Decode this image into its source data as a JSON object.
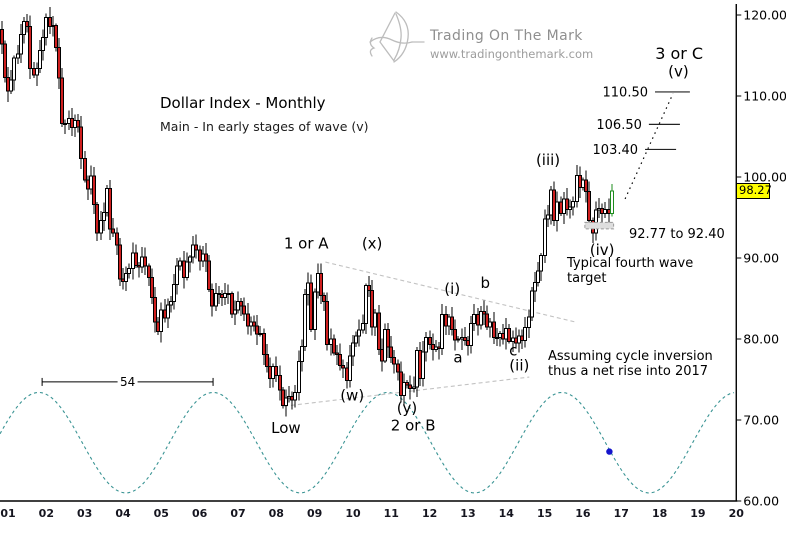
{
  "header": {
    "title": "Dollar Index - Monthly",
    "subtitle": "Main - In early stages of wave (v)"
  },
  "logo": {
    "name": "Trading On The Mark",
    "url": "www.tradingonthemark.com"
  },
  "current_price": {
    "label": "98.27",
    "value": 98.27
  },
  "y_axis": [
    {
      "value": 120,
      "label": "120.00"
    },
    {
      "value": 110,
      "label": "110.00"
    },
    {
      "value": 100,
      "label": "100.00"
    },
    {
      "value": 90,
      "label": "90.00"
    },
    {
      "value": 80,
      "label": "80.00"
    },
    {
      "value": 70,
      "label": "70.00"
    },
    {
      "value": 60,
      "label": "60.00"
    }
  ],
  "x_axis_labels": [
    "01",
    "02",
    "03",
    "04",
    "05",
    "06",
    "07",
    "08",
    "09",
    "10",
    "11",
    "12",
    "13",
    "14",
    "15",
    "16",
    "17",
    "18",
    "19",
    "20"
  ],
  "annotations": {
    "wave_labels": [
      {
        "text": "1 or A",
        "year": 8.78,
        "price": 91.8
      },
      {
        "text": "(x)",
        "year": 10.5,
        "price": 91.8
      },
      {
        "text": "Low",
        "year": 8.25,
        "price": 69.0
      },
      {
        "text": "(w)",
        "year": 9.98,
        "price": 73.0
      },
      {
        "text": "(y)",
        "year": 11.41,
        "price": 71.5
      },
      {
        "text": "2 or B",
        "year": 11.57,
        "price": 69.3
      },
      {
        "text": "(i)",
        "year": 12.59,
        "price": 86.2
      },
      {
        "text": "a",
        "year": 12.74,
        "price": 77.7
      },
      {
        "text": "b",
        "year": 13.45,
        "price": 86.9
      },
      {
        "text": "c",
        "year": 14.18,
        "price": 78.6
      },
      {
        "text": "(ii)",
        "year": 14.34,
        "price": 76.7
      },
      {
        "text": "(iii)",
        "year": 15.09,
        "price": 102.1
      },
      {
        "text": "(iv)",
        "year": 16.5,
        "price": 91.0
      },
      {
        "text": "3 or C",
        "year": 18.51,
        "price": 115.2,
        "big": true
      },
      {
        "text": "(v)",
        "year": 18.49,
        "price": 113.0
      }
    ],
    "targets": [
      {
        "label": "110.50",
        "price": 110.5,
        "year_from": 17.88,
        "year_to": 18.79
      },
      {
        "label": "106.50",
        "price": 106.5,
        "year_from": 17.72,
        "year_to": 18.53
      },
      {
        "label": "103.40",
        "price": 103.4,
        "year_from": 17.62,
        "year_to": 18.43
      }
    ],
    "projection": {
      "from": {
        "year": 17.1,
        "price": 97.3
      },
      "to": {
        "year": 18.35,
        "price": 110.3
      }
    },
    "trendlines": [
      {
        "from": {
          "year": 9.28,
          "price": 89.5
        },
        "to": {
          "year": 15.8,
          "price": 82.1
        }
      },
      {
        "from": {
          "year": 8.2,
          "price": 71.7
        },
        "to": {
          "year": 14.6,
          "price": 75.3
        }
      }
    ],
    "measurement": {
      "label": "54",
      "year_from": 1.89,
      "year_to": 6.35,
      "price": 74.7
    },
    "target_zone": {
      "label": "92.77 to 92.40",
      "year_from": 16.05,
      "year_to": 16.8,
      "price_top": 94.4,
      "price_bottom": 93.6
    },
    "notes": [
      {
        "text": "Typical fourth wave target"
      },
      {
        "text": "Assuming cycle inversion thus a net rise into 2017"
      }
    ]
  },
  "chart_data": {
    "type": "candlestick",
    "title": "Dollar Index - Monthly",
    "ylabel": "",
    "xlabel": "",
    "ylim": [
      60,
      120
    ],
    "x_years_labeled": [
      1,
      20
    ],
    "grid": false,
    "series_start": "2000-11",
    "first_open": 118.2,
    "monthly_closes": [
      116.4,
      112.3,
      110.6,
      112.0,
      114.7,
      115.2,
      117.6,
      119.2,
      118.6,
      113.4,
      112.6,
      113.4,
      115.6,
      117.2,
      119.7,
      118.6,
      118.7,
      116.0,
      112.2,
      106.6,
      106.6,
      107.2,
      106.1,
      107.0,
      106.2,
      102.3,
      99.6,
      98.5,
      100.1,
      96.6,
      93.1,
      94.6,
      95.6,
      98.6,
      93.6,
      93.1,
      91.6,
      87.4,
      87.1,
      88.1,
      88.7,
      90.6,
      89.1,
      88.9,
      90.1,
      89.0,
      87.6,
      85.1,
      82.1,
      80.9,
      83.6,
      82.6,
      84.2,
      84.6,
      86.7,
      89.0,
      89.6,
      87.6,
      89.5,
      90.1,
      91.6,
      91.0,
      89.6,
      90.5,
      89.6,
      86.1,
      84.1,
      85.6,
      85.5,
      85.1,
      85.6,
      85.6,
      83.1,
      83.6,
      84.6,
      84.1,
      83.1,
      81.6,
      82.1,
      81.6,
      80.6,
      80.7,
      78.1,
      76.6,
      75.1,
      76.6,
      75.5,
      73.7,
      71.8,
      72.7,
      72.9,
      72.5,
      73.4,
      77.2,
      79.1,
      85.5,
      86.9,
      81.2,
      85.8,
      88.1,
      85.4,
      84.6,
      79.3,
      80.0,
      78.3,
      78.1,
      76.7,
      76.4,
      74.9,
      77.9,
      79.5,
      80.4,
      81.1,
      81.9,
      86.6,
      86.0,
      81.5,
      83.2,
      78.7,
      77.3,
      81.2,
      79.0,
      77.7,
      76.9,
      75.9,
      73.0,
      74.6,
      74.3,
      73.9,
      74.1,
      78.6,
      75.1,
      78.4,
      80.2,
      79.3,
      78.7,
      79.0,
      78.8,
      83.0,
      81.6,
      82.7,
      81.2,
      79.9,
      80.0,
      80.2,
      79.8,
      79.2,
      81.9,
      83.0,
      81.7,
      83.4,
      83.1,
      81.5,
      82.1,
      80.2,
      80.2,
      80.7,
      80.0,
      81.3,
      79.7,
      80.1,
      79.5,
      80.4,
      79.8,
      81.4,
      82.7,
      85.9,
      87.0,
      88.4,
      90.3,
      94.8,
      95.3,
      98.4,
      94.6,
      96.9,
      95.5,
      97.3,
      96.0,
      96.3,
      97.0,
      100.2,
      98.7,
      99.6,
      98.2,
      94.6,
      93.1,
      95.9,
      96.1,
      95.5,
      96.0,
      95.5,
      98.27
    ],
    "cycle": {
      "type": "sine",
      "period_years": 4.55,
      "period_label_months": 54,
      "peak_year": 1.8,
      "center_price": 67.2,
      "amplitude_price": 6.2
    },
    "cycle_marker_dot": {
      "year": 16.69,
      "price": 66.1
    }
  },
  "colors": {
    "up_fill": "#ffffff",
    "down_fill": "#cf1f1f",
    "candle_outline": "#000000",
    "last_candle_outline": "#1e8c1e",
    "cycle_line": "#3a9494",
    "trendline": "#c2c2c2",
    "axis": "#000000",
    "price_box_bg": "#ffff00",
    "marker_dot": "#1414cc",
    "logo_gray": "#b5b5b5"
  }
}
